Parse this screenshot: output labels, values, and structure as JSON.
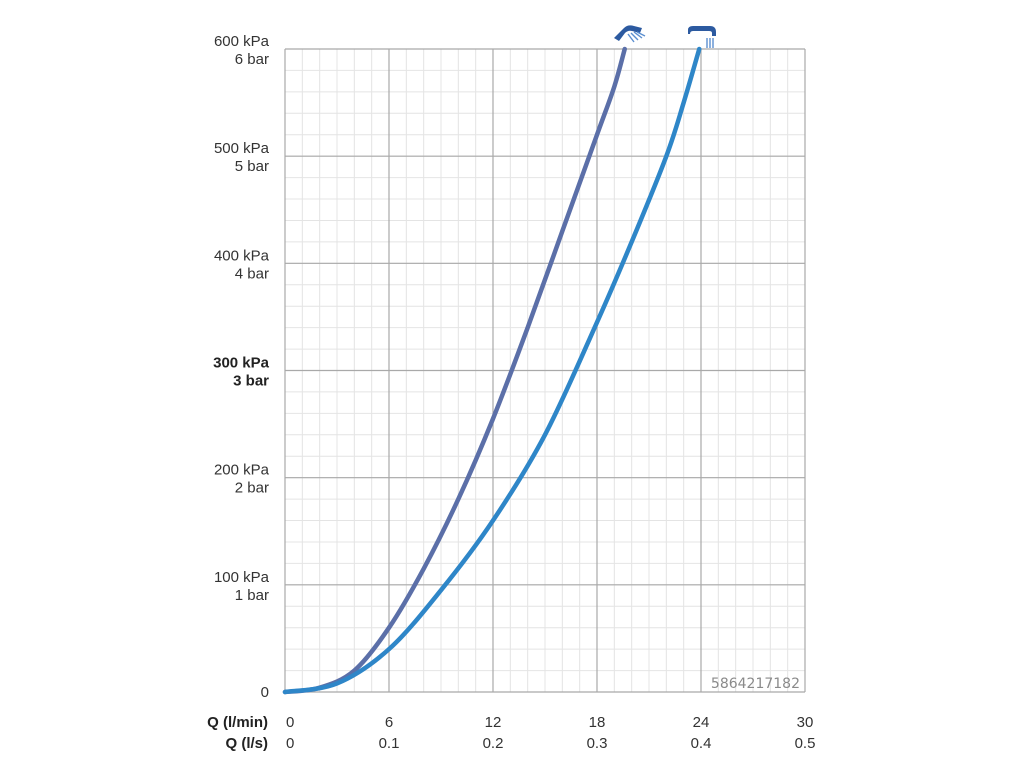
{
  "chart_data": {
    "type": "line",
    "ylim": [
      0,
      600
    ],
    "xlim": [
      0,
      30
    ],
    "y_ticks": [
      {
        "value": 0,
        "lines": [
          "0"
        ],
        "bold": false
      },
      {
        "value": 100,
        "lines": [
          "100 kPa",
          "1 bar"
        ],
        "bold": false
      },
      {
        "value": 200,
        "lines": [
          "200 kPa",
          "2 bar"
        ],
        "bold": false
      },
      {
        "value": 300,
        "lines": [
          "300 kPa",
          "3 bar"
        ],
        "bold": true
      },
      {
        "value": 400,
        "lines": [
          "400 kPa",
          "4 bar"
        ],
        "bold": false
      },
      {
        "value": 500,
        "lines": [
          "500 kPa",
          "5 bar"
        ],
        "bold": false
      },
      {
        "value": 600,
        "lines": [
          "600 kPa",
          "6 bar"
        ],
        "bold": false
      }
    ],
    "x_axis_rows": [
      {
        "label": "Q (l/min)",
        "ticks": [
          "0",
          "6",
          "12",
          "18",
          "24",
          "30"
        ]
      },
      {
        "label": "Q (l/s)",
        "ticks": [
          "0",
          "0.1",
          "0.2",
          "0.3",
          "0.4",
          "0.5"
        ]
      }
    ],
    "x_tick_values": [
      0,
      6,
      12,
      18,
      24,
      30
    ],
    "grid": true,
    "series": [
      {
        "icon": "angled-shower-head-icon",
        "color": "#5b6fa8",
        "points": [
          [
            0,
            0
          ],
          [
            2,
            4
          ],
          [
            4,
            20
          ],
          [
            6,
            60
          ],
          [
            8,
            115
          ],
          [
            10,
            180
          ],
          [
            12,
            255
          ],
          [
            14,
            340
          ],
          [
            16,
            430
          ],
          [
            18,
            520
          ],
          [
            19,
            565
          ],
          [
            19.6,
            600
          ]
        ]
      },
      {
        "icon": "overhead-shower-head-icon",
        "color": "#2e86c8",
        "points": [
          [
            0,
            0
          ],
          [
            3,
            8
          ],
          [
            6,
            40
          ],
          [
            9,
            95
          ],
          [
            12,
            160
          ],
          [
            15,
            240
          ],
          [
            18,
            345
          ],
          [
            20,
            420
          ],
          [
            22,
            500
          ],
          [
            23,
            550
          ],
          [
            23.9,
            600
          ]
        ]
      }
    ]
  },
  "watermark": "5864217182"
}
